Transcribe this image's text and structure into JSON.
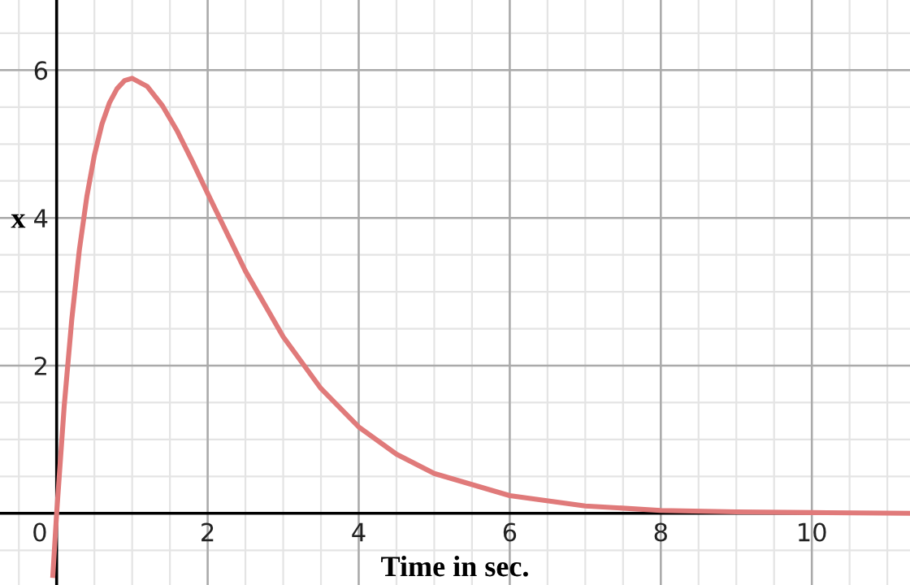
{
  "chart_data": {
    "type": "line",
    "xlabel": "Time in sec.",
    "ylabel": "x",
    "x": [
      -0.05,
      0,
      0.1,
      0.2,
      0.3,
      0.4,
      0.5,
      0.6,
      0.7,
      0.8,
      0.9,
      1.0,
      1.2,
      1.4,
      1.6,
      1.8,
      2,
      2.5,
      3,
      3.5,
      4,
      4.5,
      5,
      6,
      7,
      8,
      9,
      10,
      11.3
    ],
    "series": [
      {
        "color": "#e07a7a",
        "values": [
          -0.84,
          0,
          1.45,
          2.62,
          3.56,
          4.29,
          4.85,
          5.27,
          5.56,
          5.75,
          5.86,
          5.89,
          5.78,
          5.52,
          5.17,
          4.76,
          4.33,
          3.28,
          2.39,
          1.69,
          1.17,
          0.8,
          0.54,
          0.24,
          0.1,
          0.04,
          0.02,
          0.01,
          0.0
        ]
      }
    ],
    "xlim": [
      -0.75,
      11.3
    ],
    "ylim": [
      -0.97,
      6.95
    ],
    "xticks": [
      0,
      2,
      4,
      6,
      8,
      10
    ],
    "yticks": [
      2,
      4,
      6
    ],
    "grid": true,
    "line_style": "solid",
    "marker": "none"
  }
}
